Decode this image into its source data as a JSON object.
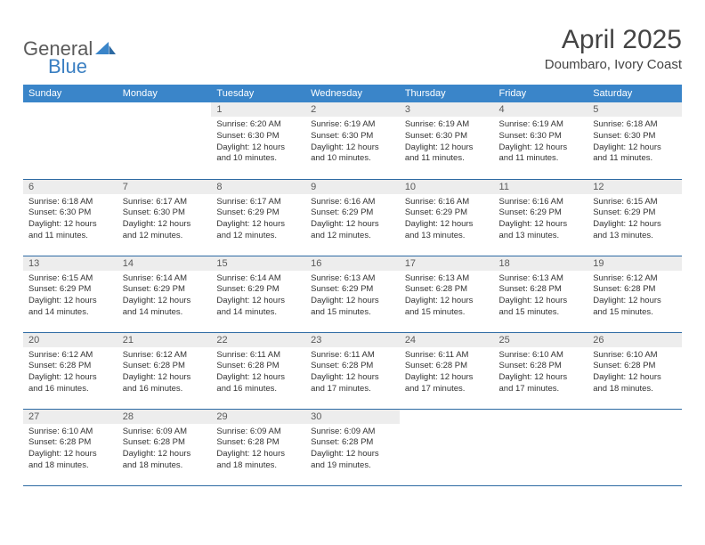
{
  "logo": {
    "text_general": "General",
    "text_blue": "Blue",
    "icon_color": "#3a85c9"
  },
  "title": "April 2025",
  "location": "Doumbaro, Ivory Coast",
  "colors": {
    "header_bg": "#3a85c9",
    "header_text": "#ffffff",
    "daynum_bg": "#ededed",
    "daynum_text": "#5a5a5a",
    "border": "#2d6aa3",
    "body_text": "#333333"
  },
  "weekdays": [
    "Sunday",
    "Monday",
    "Tuesday",
    "Wednesday",
    "Thursday",
    "Friday",
    "Saturday"
  ],
  "first_weekday_index": 2,
  "days": [
    {
      "n": 1,
      "sunrise": "6:20 AM",
      "sunset": "6:30 PM",
      "daylight": "12 hours and 10 minutes."
    },
    {
      "n": 2,
      "sunrise": "6:19 AM",
      "sunset": "6:30 PM",
      "daylight": "12 hours and 10 minutes."
    },
    {
      "n": 3,
      "sunrise": "6:19 AM",
      "sunset": "6:30 PM",
      "daylight": "12 hours and 11 minutes."
    },
    {
      "n": 4,
      "sunrise": "6:19 AM",
      "sunset": "6:30 PM",
      "daylight": "12 hours and 11 minutes."
    },
    {
      "n": 5,
      "sunrise": "6:18 AM",
      "sunset": "6:30 PM",
      "daylight": "12 hours and 11 minutes."
    },
    {
      "n": 6,
      "sunrise": "6:18 AM",
      "sunset": "6:30 PM",
      "daylight": "12 hours and 11 minutes."
    },
    {
      "n": 7,
      "sunrise": "6:17 AM",
      "sunset": "6:30 PM",
      "daylight": "12 hours and 12 minutes."
    },
    {
      "n": 8,
      "sunrise": "6:17 AM",
      "sunset": "6:29 PM",
      "daylight": "12 hours and 12 minutes."
    },
    {
      "n": 9,
      "sunrise": "6:16 AM",
      "sunset": "6:29 PM",
      "daylight": "12 hours and 12 minutes."
    },
    {
      "n": 10,
      "sunrise": "6:16 AM",
      "sunset": "6:29 PM",
      "daylight": "12 hours and 13 minutes."
    },
    {
      "n": 11,
      "sunrise": "6:16 AM",
      "sunset": "6:29 PM",
      "daylight": "12 hours and 13 minutes."
    },
    {
      "n": 12,
      "sunrise": "6:15 AM",
      "sunset": "6:29 PM",
      "daylight": "12 hours and 13 minutes."
    },
    {
      "n": 13,
      "sunrise": "6:15 AM",
      "sunset": "6:29 PM",
      "daylight": "12 hours and 14 minutes."
    },
    {
      "n": 14,
      "sunrise": "6:14 AM",
      "sunset": "6:29 PM",
      "daylight": "12 hours and 14 minutes."
    },
    {
      "n": 15,
      "sunrise": "6:14 AM",
      "sunset": "6:29 PM",
      "daylight": "12 hours and 14 minutes."
    },
    {
      "n": 16,
      "sunrise": "6:13 AM",
      "sunset": "6:29 PM",
      "daylight": "12 hours and 15 minutes."
    },
    {
      "n": 17,
      "sunrise": "6:13 AM",
      "sunset": "6:28 PM",
      "daylight": "12 hours and 15 minutes."
    },
    {
      "n": 18,
      "sunrise": "6:13 AM",
      "sunset": "6:28 PM",
      "daylight": "12 hours and 15 minutes."
    },
    {
      "n": 19,
      "sunrise": "6:12 AM",
      "sunset": "6:28 PM",
      "daylight": "12 hours and 15 minutes."
    },
    {
      "n": 20,
      "sunrise": "6:12 AM",
      "sunset": "6:28 PM",
      "daylight": "12 hours and 16 minutes."
    },
    {
      "n": 21,
      "sunrise": "6:12 AM",
      "sunset": "6:28 PM",
      "daylight": "12 hours and 16 minutes."
    },
    {
      "n": 22,
      "sunrise": "6:11 AM",
      "sunset": "6:28 PM",
      "daylight": "12 hours and 16 minutes."
    },
    {
      "n": 23,
      "sunrise": "6:11 AM",
      "sunset": "6:28 PM",
      "daylight": "12 hours and 17 minutes."
    },
    {
      "n": 24,
      "sunrise": "6:11 AM",
      "sunset": "6:28 PM",
      "daylight": "12 hours and 17 minutes."
    },
    {
      "n": 25,
      "sunrise": "6:10 AM",
      "sunset": "6:28 PM",
      "daylight": "12 hours and 17 minutes."
    },
    {
      "n": 26,
      "sunrise": "6:10 AM",
      "sunset": "6:28 PM",
      "daylight": "12 hours and 18 minutes."
    },
    {
      "n": 27,
      "sunrise": "6:10 AM",
      "sunset": "6:28 PM",
      "daylight": "12 hours and 18 minutes."
    },
    {
      "n": 28,
      "sunrise": "6:09 AM",
      "sunset": "6:28 PM",
      "daylight": "12 hours and 18 minutes."
    },
    {
      "n": 29,
      "sunrise": "6:09 AM",
      "sunset": "6:28 PM",
      "daylight": "12 hours and 18 minutes."
    },
    {
      "n": 30,
      "sunrise": "6:09 AM",
      "sunset": "6:28 PM",
      "daylight": "12 hours and 19 minutes."
    }
  ],
  "labels": {
    "sunrise": "Sunrise:",
    "sunset": "Sunset:",
    "daylight": "Daylight:"
  }
}
